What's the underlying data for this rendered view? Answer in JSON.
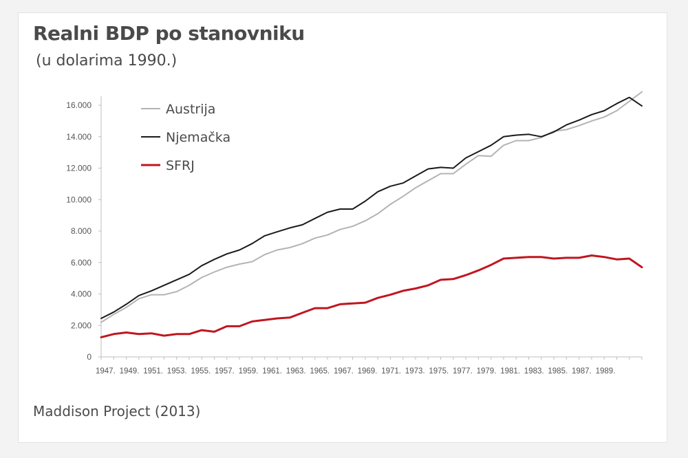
{
  "header": {
    "title": "Realni BDP po stanovniku",
    "subtitle": "(u dolarima 1990.)"
  },
  "footer": {
    "source": "Maddison Project (2013)"
  },
  "chart_data": {
    "type": "line",
    "title": "Realni BDP po stanovniku",
    "subtitle": "(u dolarima 1990.)",
    "xlabel": "",
    "ylabel": "",
    "ylim": [
      0,
      16000
    ],
    "xlim": [
      1947,
      1990
    ],
    "yticks": [
      0,
      2000,
      4000,
      6000,
      8000,
      10000,
      12000,
      14000,
      16000
    ],
    "ytick_labels": [
      "0",
      "2.000",
      "4.000",
      "6.000",
      "8.000",
      "10.000",
      "12.000",
      "14.000",
      "16.000"
    ],
    "xtick_labels": [
      "1947.",
      "1949.",
      "1951.",
      "1953.",
      "1955.",
      "1957.",
      "1959.",
      "1961.",
      "1963.",
      "1965.",
      "1967.",
      "1969.",
      "1971.",
      "1973.",
      "1975.",
      "1977.",
      "1979.",
      "1981.",
      "1983.",
      "1985.",
      "1987.",
      "1989."
    ],
    "legend_position": "top-left",
    "grid": false,
    "x": [
      1947,
      1948,
      1949,
      1950,
      1951,
      1952,
      1953,
      1954,
      1955,
      1956,
      1957,
      1958,
      1959,
      1960,
      1961,
      1962,
      1963,
      1964,
      1965,
      1966,
      1967,
      1968,
      1969,
      1970,
      1971,
      1972,
      1973,
      1974,
      1975,
      1976,
      1977,
      1978,
      1979,
      1980,
      1981,
      1982,
      1983,
      1984,
      1985,
      1986,
      1987,
      1988,
      1989,
      1990
    ],
    "series": [
      {
        "name": "Austrija",
        "color": "#b3b3b3",
        "values": [
          2200,
          2700,
          3150,
          3700,
          3950,
          3950,
          4150,
          4550,
          5050,
          5400,
          5700,
          5900,
          6050,
          6500,
          6800,
          6950,
          7200,
          7550,
          7750,
          8100,
          8300,
          8650,
          9100,
          9700,
          10200,
          10750,
          11200,
          11650,
          11650,
          12250,
          12800,
          12750,
          13450,
          13750,
          13750,
          13950,
          14350,
          14450,
          14700,
          15000,
          15250,
          15650,
          16250,
          16850
        ]
      },
      {
        "name": "Njemačka",
        "color": "#1a1a1a",
        "values": [
          2450,
          2850,
          3350,
          3900,
          4200,
          4550,
          4900,
          5250,
          5800,
          6200,
          6550,
          6800,
          7200,
          7700,
          7950,
          8200,
          8400,
          8800,
          9200,
          9400,
          9400,
          9900,
          10500,
          10850,
          11050,
          11500,
          11950,
          12050,
          12000,
          12650,
          13050,
          13450,
          14000,
          14100,
          14150,
          14000,
          14300,
          14750,
          15050,
          15400,
          15650,
          16100,
          16500,
          15950
        ]
      },
      {
        "name": "SFRJ",
        "color": "#c0161f",
        "values": [
          1250,
          1450,
          1550,
          1450,
          1500,
          1350,
          1450,
          1450,
          1700,
          1600,
          1950,
          1950,
          2250,
          2350,
          2450,
          2500,
          2800,
          3100,
          3100,
          3350,
          3400,
          3450,
          3750,
          3950,
          4200,
          4350,
          4550,
          4900,
          4950,
          5200,
          5500,
          5850,
          6250,
          6300,
          6350,
          6350,
          6250,
          6300,
          6300,
          6450,
          6350,
          6200,
          6250,
          5700
        ]
      }
    ]
  }
}
